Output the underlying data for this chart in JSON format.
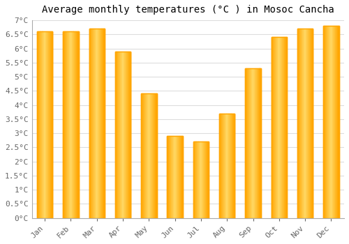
{
  "title": "Average monthly temperatures (°C ) in Mosoc Cancha",
  "months": [
    "Jan",
    "Feb",
    "Mar",
    "Apr",
    "May",
    "Jun",
    "Jul",
    "Aug",
    "Sep",
    "Oct",
    "Nov",
    "Dec"
  ],
  "values": [
    6.6,
    6.6,
    6.7,
    5.9,
    4.4,
    2.9,
    2.7,
    3.7,
    5.3,
    6.4,
    6.7,
    6.8
  ],
  "bar_color_center": "#FFD966",
  "bar_color_edge": "#FFA500",
  "background_color": "#FFFFFF",
  "plot_bg_color": "#FFFFFF",
  "grid_color": "#DDDDDD",
  "ylim": [
    0,
    7
  ],
  "title_fontsize": 10,
  "tick_fontsize": 8,
  "font_family": "monospace",
  "bar_width": 0.6
}
